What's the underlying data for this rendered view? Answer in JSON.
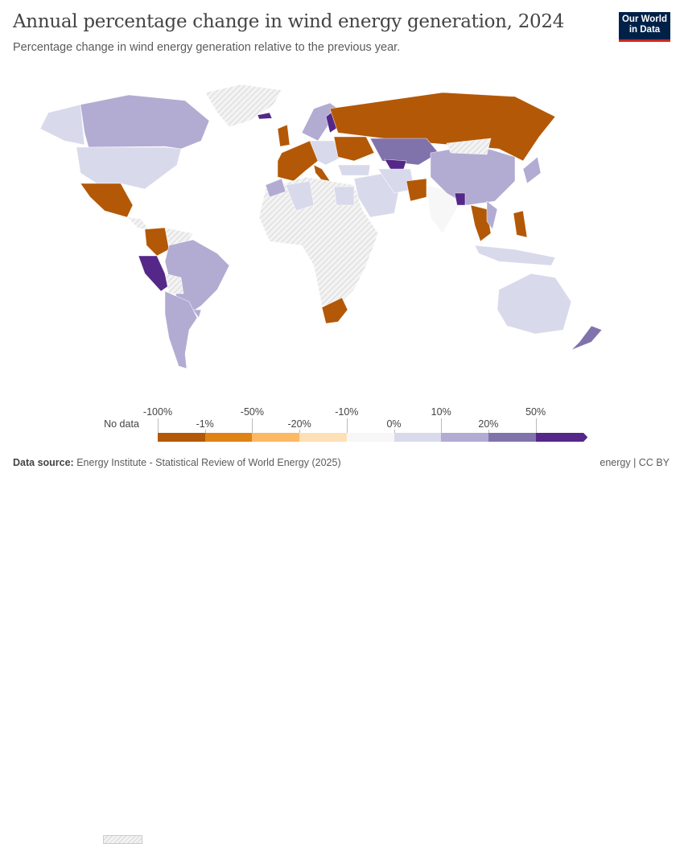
{
  "title": "Annual percentage change in wind energy generation, 2024",
  "subtitle": "Percentage change in wind energy generation relative to the previous year.",
  "logo": {
    "line1": "Our World",
    "line2": "in Data"
  },
  "legend": {
    "no_data_label": "No data",
    "upper_labels": [
      "-100%",
      "-50%",
      "-10%",
      "10%",
      "50%"
    ],
    "lower_labels": [
      "-1%",
      "-20%",
      "0%",
      "20%"
    ],
    "colors": [
      "#b35806",
      "#e08214",
      "#fdb863",
      "#fee0b6",
      "#f7f7f7",
      "#d8daeb",
      "#b2abd2",
      "#8073ac",
      "#542788"
    ],
    "no_data_color": "#e8e8e8"
  },
  "footer": {
    "source_label": "Data source:",
    "source": "Energy Institute - Statistical Review of World Energy (2025)",
    "license": "energy | CC BY"
  }
}
